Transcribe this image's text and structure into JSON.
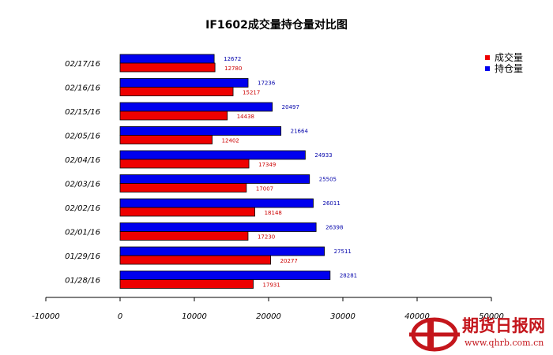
{
  "chart_data": {
    "type": "bar",
    "orientation": "horizontal",
    "title": "IF1602成交量持仓量对比图",
    "categories": [
      "02/17/16",
      "02/16/16",
      "02/15/16",
      "02/05/16",
      "02/04/16",
      "02/03/16",
      "02/02/16",
      "02/01/16",
      "01/29/16",
      "01/28/16"
    ],
    "series": [
      {
        "name": "持仓量",
        "color": "#0000ee",
        "values": [
          12672,
          17236,
          20497,
          21664,
          24933,
          25505,
          26011,
          26398,
          27511,
          28281
        ]
      },
      {
        "name": "成交量",
        "color": "#ee0000",
        "values": [
          12780,
          15217,
          14438,
          12402,
          17349,
          17007,
          18148,
          17230,
          20277,
          17931
        ]
      }
    ],
    "legend_order": [
      "成交量",
      "持仓量"
    ],
    "xlim": [
      -10000,
      50000
    ],
    "xticks": [
      -10000,
      0,
      10000,
      20000,
      30000,
      40000,
      50000
    ],
    "xtick_labels": [
      "-10000",
      "0",
      "10000",
      "20000",
      "30000",
      "40000",
      "50000"
    ],
    "legend_position": "top-right",
    "grid": false
  },
  "watermark": {
    "logo_letter": "D",
    "text": "期货日报网",
    "url": "www.qhrb.com.cn"
  }
}
